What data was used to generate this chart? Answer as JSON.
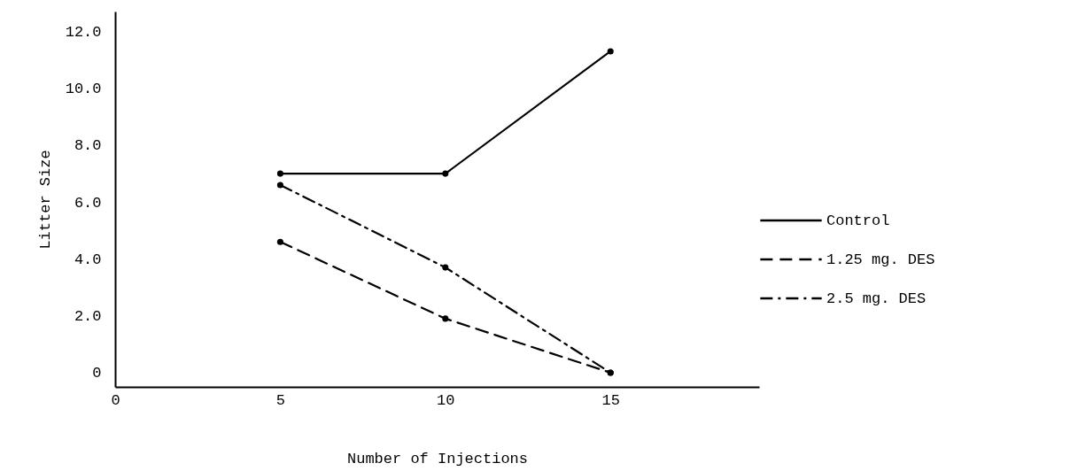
{
  "chart_data": {
    "type": "line",
    "xlabel": "Number of Injections",
    "ylabel": "Litter Size",
    "x": [
      5,
      10,
      15
    ],
    "series": [
      {
        "name": "Control",
        "color": "#000000",
        "line_style": "solid",
        "values": [
          7.0,
          7.0,
          11.3
        ]
      },
      {
        "name": "1.25 mg. DES",
        "color": "#000000",
        "line_style": "dashed",
        "values": [
          4.6,
          1.9,
          0
        ]
      },
      {
        "name": "2.5 mg. DES",
        "color": "#000000",
        "line_style": "dashdot",
        "values": [
          6.6,
          3.7,
          0
        ]
      }
    ],
    "xlim": [
      0,
      19.5
    ],
    "xticks": [
      0,
      5,
      10,
      15
    ],
    "ylim": [
      -0.5,
      12.7
    ],
    "yticks": [
      {
        "value": 0,
        "label": "0"
      },
      {
        "value": 2,
        "label": "2.0"
      },
      {
        "value": 4,
        "label": "4.0"
      },
      {
        "value": 6,
        "label": "6.0"
      },
      {
        "value": 8,
        "label": "8.0"
      },
      {
        "value": 10,
        "label": "10.0"
      },
      {
        "value": 12,
        "label": "12.0"
      }
    ],
    "grid": false,
    "legend": "right",
    "marker": "circle"
  }
}
